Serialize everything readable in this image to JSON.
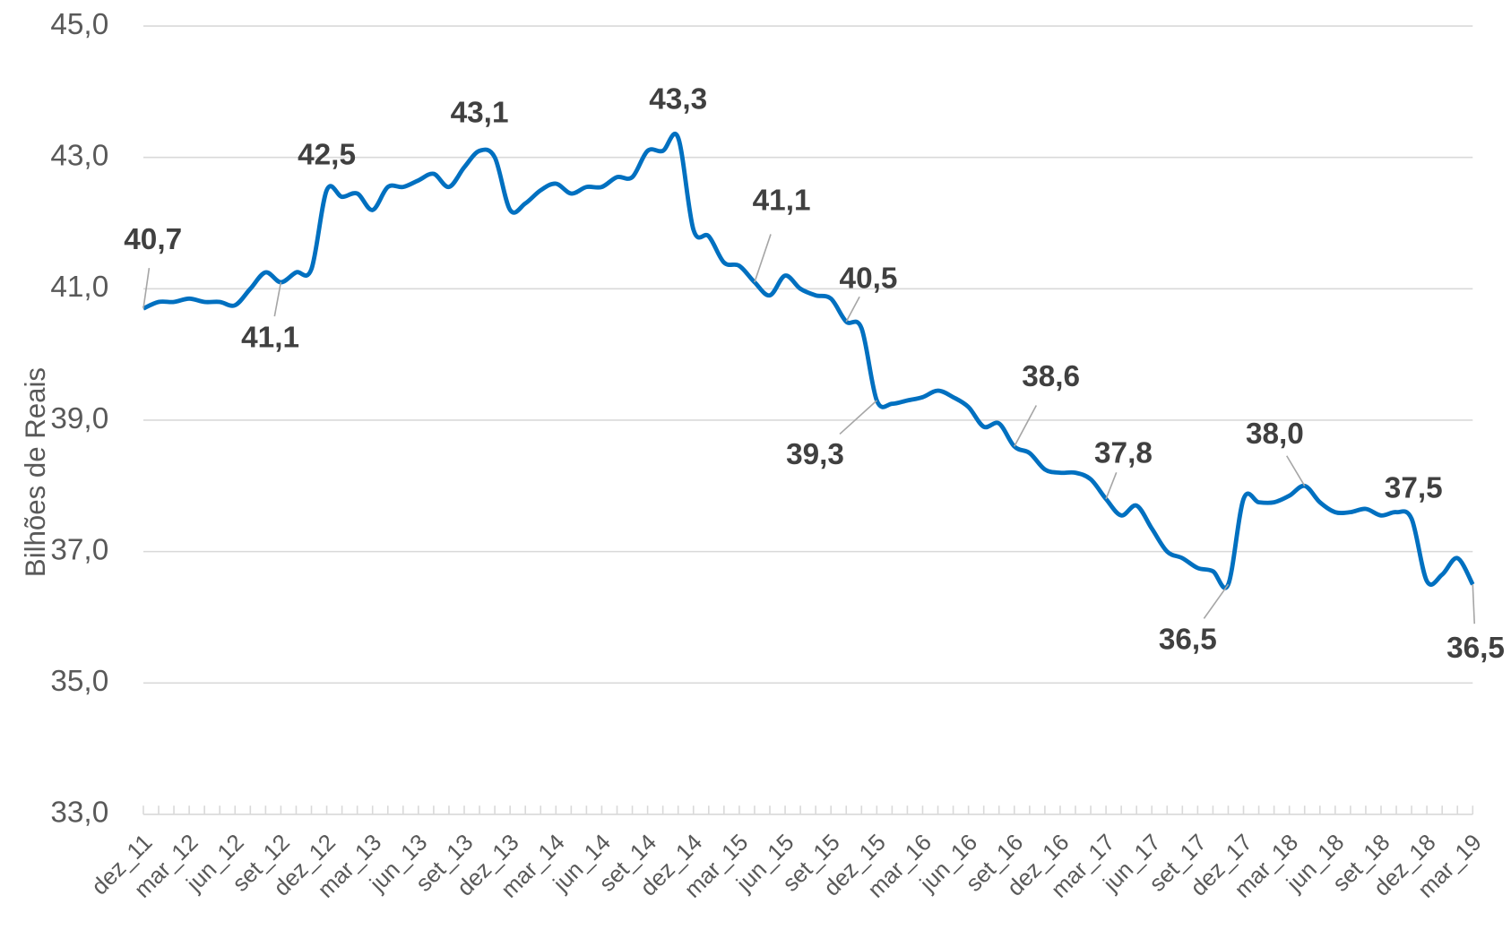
{
  "chart_data": {
    "type": "line",
    "y_label": "Bilhões de Reais",
    "categories": [
      "dez_11",
      null,
      null,
      "mar_12",
      null,
      null,
      "jun_12",
      null,
      null,
      "set_12",
      null,
      null,
      "dez_12",
      null,
      null,
      "mar_13",
      null,
      null,
      "jun_13",
      null,
      null,
      "set_13",
      null,
      null,
      "dez_13",
      null,
      null,
      "mar_14",
      null,
      null,
      "jun_14",
      null,
      null,
      "set_14",
      null,
      null,
      "dez_14",
      null,
      null,
      "mar_15",
      null,
      null,
      "jun_15",
      null,
      null,
      "set_15",
      null,
      null,
      "dez_15",
      null,
      null,
      "mar_16",
      null,
      null,
      "jun_16",
      null,
      null,
      "set_16",
      null,
      null,
      "dez_16",
      null,
      null,
      "mar_17",
      null,
      null,
      "jun_17",
      null,
      null,
      "set_17",
      null,
      null,
      "dez_17",
      null,
      null,
      "mar_18",
      null,
      null,
      "jun_18",
      null,
      null,
      "set_18",
      null,
      null,
      "dez_18",
      null,
      null,
      "mar_19"
    ],
    "series": [
      {
        "name": "Bilhões de Reais",
        "color": "#0070c0",
        "values": [
          40.7,
          40.8,
          40.8,
          40.85,
          40.8,
          40.8,
          40.75,
          41.0,
          41.25,
          41.1,
          41.25,
          41.3,
          42.5,
          42.4,
          42.45,
          42.2,
          42.55,
          42.55,
          42.65,
          42.75,
          42.55,
          42.85,
          43.1,
          43.0,
          42.2,
          42.3,
          42.5,
          42.6,
          42.45,
          42.55,
          42.55,
          42.7,
          42.7,
          43.1,
          43.1,
          43.3,
          41.9,
          41.8,
          41.4,
          41.35,
          41.1,
          40.9,
          41.2,
          41.0,
          40.9,
          40.85,
          40.5,
          40.4,
          39.3,
          39.25,
          39.3,
          39.35,
          39.45,
          39.35,
          39.2,
          38.9,
          38.95,
          38.6,
          38.5,
          38.25,
          38.2,
          38.2,
          38.1,
          37.8,
          37.55,
          37.7,
          37.35,
          37.0,
          36.9,
          36.75,
          36.7,
          36.5,
          37.8,
          37.75,
          37.75,
          37.85,
          38.0,
          37.75,
          37.6,
          37.6,
          37.65,
          37.55,
          37.6,
          37.5,
          36.55,
          36.65,
          36.9,
          36.5
        ],
        "value_labels": [
          "40,7",
          null,
          null,
          null,
          null,
          null,
          null,
          null,
          null,
          "41,1",
          null,
          null,
          "42,5",
          null,
          null,
          null,
          null,
          null,
          null,
          null,
          null,
          null,
          "43,1",
          null,
          null,
          null,
          null,
          null,
          null,
          null,
          null,
          null,
          null,
          null,
          null,
          "43,3",
          null,
          null,
          null,
          null,
          "41,1",
          null,
          null,
          null,
          null,
          null,
          "40,5",
          null,
          "39,3",
          null,
          null,
          null,
          null,
          null,
          null,
          null,
          null,
          "38,6",
          null,
          null,
          null,
          null,
          null,
          "37,8",
          null,
          null,
          null,
          null,
          null,
          null,
          null,
          "36,5",
          null,
          null,
          null,
          null,
          "38,0",
          null,
          null,
          null,
          null,
          null,
          null,
          "37,5",
          null,
          null,
          null,
          "36,5"
        ]
      }
    ],
    "ylim": [
      33,
      45
    ],
    "yticks": [
      {
        "value": 33,
        "label": "33,0"
      },
      {
        "value": 35,
        "label": "35,0"
      },
      {
        "value": 37,
        "label": "37,0"
      },
      {
        "value": 39,
        "label": "39,0"
      },
      {
        "value": 41,
        "label": "41,0"
      },
      {
        "value": 43,
        "label": "43,0"
      },
      {
        "value": 45,
        "label": "45,0"
      }
    ],
    "grid": true
  }
}
